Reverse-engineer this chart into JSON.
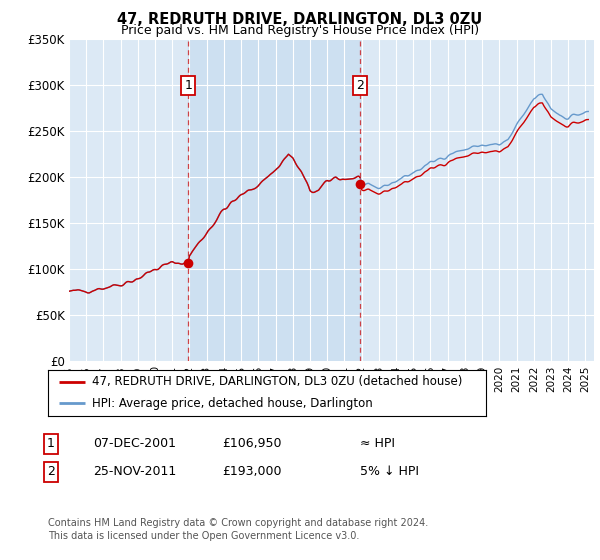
{
  "title": "47, REDRUTH DRIVE, DARLINGTON, DL3 0ZU",
  "subtitle": "Price paid vs. HM Land Registry's House Price Index (HPI)",
  "background_color": "#ffffff",
  "plot_bg_color": "#dce9f5",
  "ylim": [
    0,
    350000
  ],
  "yticks": [
    0,
    50000,
    100000,
    150000,
    200000,
    250000,
    300000,
    350000
  ],
  "ytick_labels": [
    "£0",
    "£50K",
    "£100K",
    "£150K",
    "£200K",
    "£250K",
    "£300K",
    "£350K"
  ],
  "sale1": {
    "date_num": 2001.92,
    "price": 106950,
    "label": "1"
  },
  "sale2": {
    "date_num": 2011.9,
    "price": 193000,
    "label": "2"
  },
  "legend_entry1": "47, REDRUTH DRIVE, DARLINGTON, DL3 0ZU (detached house)",
  "legend_entry2": "HPI: Average price, detached house, Darlington",
  "table_row1": [
    "1",
    "07-DEC-2001",
    "£106,950",
    "≈ HPI"
  ],
  "table_row2": [
    "2",
    "25-NOV-2011",
    "£193,000",
    "5% ↓ HPI"
  ],
  "footer": "Contains HM Land Registry data © Crown copyright and database right 2024.\nThis data is licensed under the Open Government Licence v3.0.",
  "price_line_color": "#cc0000",
  "hpi_line_color": "#6699cc",
  "vline_color": "#cc0000",
  "shade_color": "#c5d8ed",
  "xstart": 1995.0,
  "xend": 2025.5
}
